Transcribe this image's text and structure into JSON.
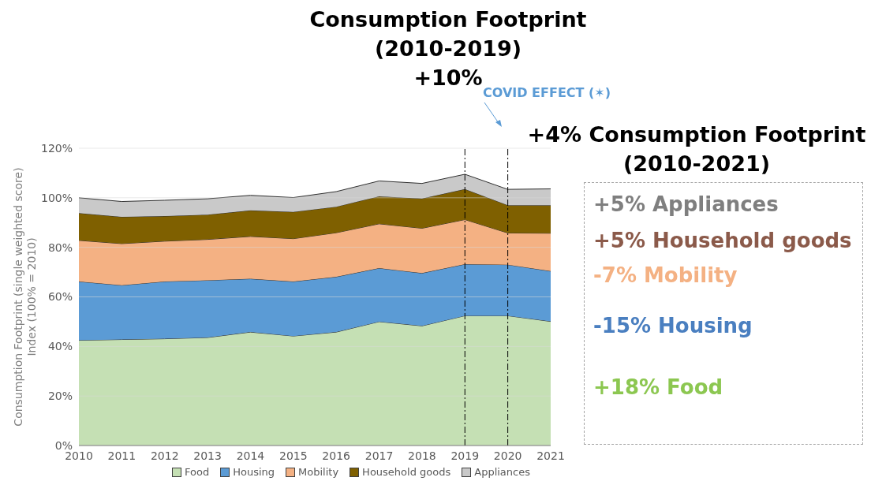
{
  "chart_data": {
    "type": "area",
    "title": "Consumption Footprint\n(2010-2019)\n+10%",
    "subtitle": "+4% Consumption Footprint\n(2010-2021)",
    "ylabel": "Consumption Footprint (single weighted score)\nIndex (100% = 2010)",
    "x": [
      2010,
      2011,
      2012,
      2013,
      2014,
      2015,
      2016,
      2017,
      2018,
      2019,
      2020,
      2021
    ],
    "stacked": true,
    "series": [
      {
        "name": "Food",
        "color": "#c5e0b4",
        "values": [
          42.5,
          42.8,
          43.1,
          43.6,
          45.8,
          44.2,
          45.8,
          50,
          48.3,
          52.4,
          52.4,
          50.1
        ]
      },
      {
        "name": "Housing",
        "color": "#5b9bd5",
        "values": [
          23.7,
          21.9,
          23.1,
          23.1,
          21.5,
          22,
          22.3,
          21.6,
          21.3,
          20.8,
          20.6,
          20.3
        ]
      },
      {
        "name": "Mobility",
        "color": "#f4b183",
        "values": [
          16.6,
          16.8,
          16.3,
          16.5,
          17.1,
          17.3,
          17.8,
          17.9,
          18.1,
          18,
          12.8,
          15.3
        ]
      },
      {
        "name": "Household goods",
        "color": "#7f6000",
        "values": [
          11,
          10.8,
          10.1,
          10,
          10.5,
          10.8,
          10.5,
          11.1,
          12,
          12.3,
          11.2,
          11.3
        ]
      },
      {
        "name": "Appliances",
        "color": "#c9c9c9",
        "values": [
          6.2,
          6.2,
          6.4,
          6.4,
          6.1,
          5.8,
          6.1,
          6.2,
          6.1,
          6,
          6.4,
          6.6
        ]
      }
    ],
    "xlim": [
      2010,
      2021
    ],
    "xticks": [
      2010,
      2011,
      2012,
      2013,
      2014,
      2015,
      2016,
      2017,
      2018,
      2019,
      2020,
      2021
    ],
    "ylim": [
      0,
      120
    ],
    "yticks": [
      {
        "value": 0,
        "label": "0%"
      },
      {
        "value": 20,
        "label": "20%"
      },
      {
        "value": 40,
        "label": "40%"
      },
      {
        "value": 60,
        "label": "60%"
      },
      {
        "value": 80,
        "label": "80%"
      },
      {
        "value": 100,
        "label": "100%"
      },
      {
        "value": 120,
        "label": "120%"
      }
    ],
    "grid": "y",
    "legend": "bottom",
    "ref_lines": [
      {
        "axis": "x",
        "value": 2019,
        "color": "#000000",
        "line_style": "dashed"
      },
      {
        "axis": "x",
        "value": 2020,
        "color": "#000000",
        "line_style": "dashed"
      }
    ],
    "annotations": [
      "COVID EFFECT (✶)",
      "+5% Appliances",
      "+5% Household goods",
      "-7% Mobility",
      "-15% Housing",
      "+18% Food"
    ]
  }
}
